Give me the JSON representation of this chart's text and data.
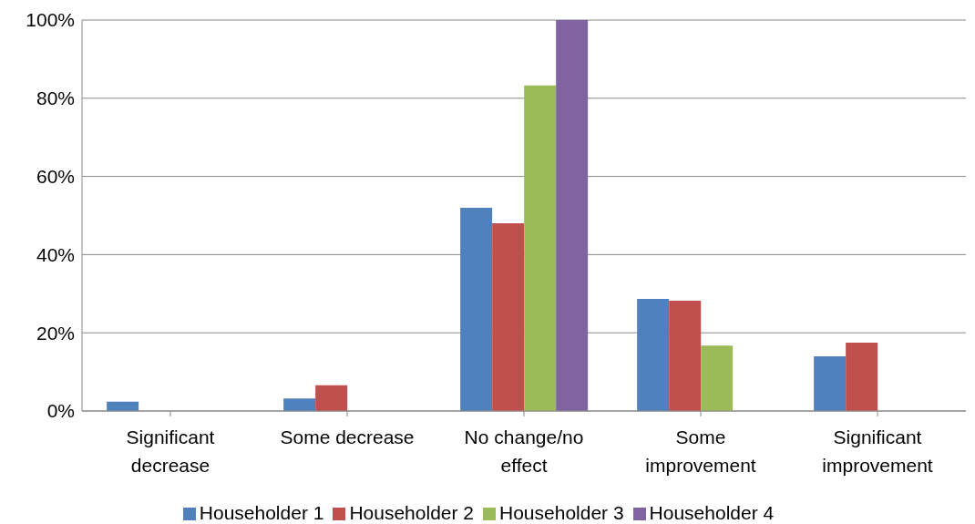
{
  "chart_data": {
    "type": "bar",
    "categories": [
      "Significant decrease",
      "Some decrease",
      "No change/no effect",
      "Some improvement",
      "Significant improvement"
    ],
    "series": [
      {
        "name": "Householder 1",
        "color": "#4f81bd",
        "values": [
          2.4,
          3.2,
          52.0,
          28.7,
          14.0
        ]
      },
      {
        "name": "Householder 2",
        "color": "#c0504d",
        "values": [
          0,
          6.6,
          48.0,
          28.2,
          17.5
        ]
      },
      {
        "name": "Householder 3",
        "color": "#9bbb59",
        "values": [
          0,
          0,
          83.3,
          16.7,
          0
        ]
      },
      {
        "name": "Householder 4",
        "color": "#8064a2",
        "values": [
          0,
          0,
          100,
          0,
          0
        ]
      }
    ],
    "ylim": [
      0,
      100
    ],
    "yticks": [
      {
        "value": 0,
        "label": "0%"
      },
      {
        "value": 20,
        "label": "20%"
      },
      {
        "value": 40,
        "label": "40%"
      },
      {
        "value": 60,
        "label": "60%"
      },
      {
        "value": 80,
        "label": "80%"
      },
      {
        "value": 100,
        "label": "100%"
      }
    ],
    "grid": "y",
    "legend": "bottom"
  }
}
